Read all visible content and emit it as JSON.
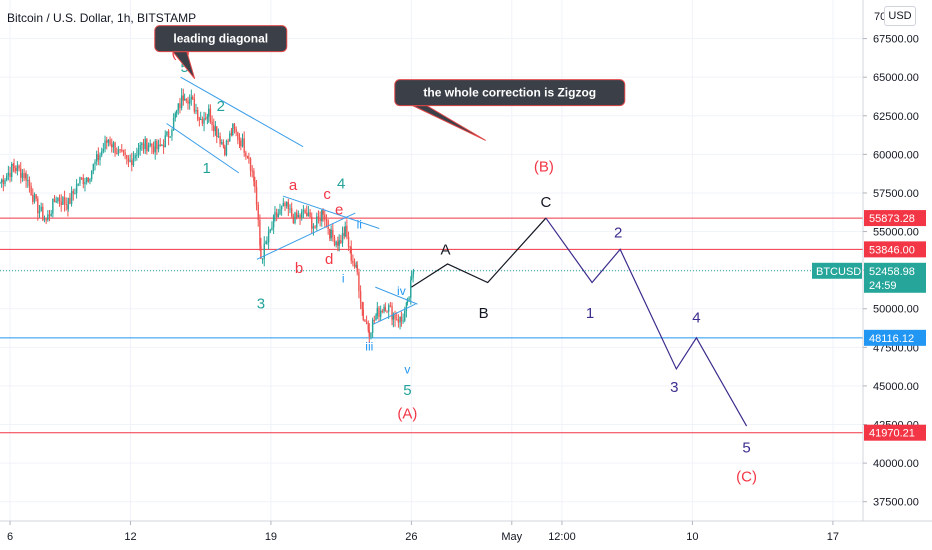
{
  "header": {
    "title": "Bitcoin / U.S. Dollar, 1h, BITSTAMP",
    "currency_button": "USD"
  },
  "chart_data": {
    "type": "candlestick",
    "symbol": "BTCUSD",
    "interval": "1h",
    "exchange": "BITSTAMP",
    "last_price": "52458.98",
    "countdown": "24:59",
    "ylim": [
      36250,
      70000
    ],
    "y_ticks": [
      "67500.00",
      "65000.00",
      "62500.00",
      "60000.00",
      "57500.00",
      "55000.00",
      "52500.00",
      "50000.00",
      "47500.00",
      "45000.00",
      "42500.00",
      "40000.00",
      "37500.00"
    ],
    "y_tick_values": [
      67500,
      65000,
      62500,
      60000,
      57500,
      55000,
      52500,
      50000,
      47500,
      45000,
      42500,
      40000,
      37500
    ],
    "y_top_partial": "70",
    "x_ticks": [
      "6",
      "12",
      "19",
      "26",
      "May",
      "12:00",
      "10",
      "17"
    ],
    "x_tick_days": [
      6,
      12,
      19,
      26,
      31,
      33.5,
      40,
      47
    ],
    "xlim": [
      5.5,
      48.5
    ],
    "horizontal_levels": [
      {
        "value": 55873.28,
        "label": "55873.28",
        "color": "#f23645"
      },
      {
        "value": 53846.0,
        "label": "53846.00",
        "color": "#f23645"
      },
      {
        "value": 48116.12,
        "label": "48116.12",
        "color": "#2196f3"
      },
      {
        "value": 41970.21,
        "label": "41970.21",
        "color": "#f23645"
      }
    ],
    "ohlc_anchors": [
      [
        5.5,
        58200
      ],
      [
        6.2,
        59200
      ],
      [
        6.8,
        58600
      ],
      [
        7.3,
        56700
      ],
      [
        7.8,
        55700
      ],
      [
        8.3,
        57200
      ],
      [
        8.9,
        56800
      ],
      [
        9.4,
        58200
      ],
      [
        9.9,
        58600
      ],
      [
        10.4,
        59800
      ],
      [
        10.9,
        61000
      ],
      [
        11.4,
        60100
      ],
      [
        11.9,
        59400
      ],
      [
        12.4,
        60400
      ],
      [
        12.9,
        60700
      ],
      [
        13.4,
        60300
      ],
      [
        13.9,
        61300
      ],
      [
        14.3,
        62700
      ],
      [
        14.7,
        64000
      ],
      [
        15.1,
        63300
      ],
      [
        15.5,
        62300
      ],
      [
        15.9,
        62700
      ],
      [
        16.3,
        61500
      ],
      [
        16.7,
        60400
      ],
      [
        17.1,
        61600
      ],
      [
        17.5,
        60900
      ],
      [
        17.9,
        59900
      ],
      [
        18.2,
        58000
      ],
      [
        18.5,
        53300
      ],
      [
        18.8,
        54300
      ],
      [
        19.2,
        55900
      ],
      [
        19.7,
        56600
      ],
      [
        20.2,
        55800
      ],
      [
        20.7,
        56200
      ],
      [
        21.2,
        55300
      ],
      [
        21.6,
        56400
      ],
      [
        22.0,
        54700
      ],
      [
        22.4,
        54300
      ],
      [
        22.7,
        55000
      ],
      [
        23.0,
        53400
      ],
      [
        23.3,
        52300
      ],
      [
        23.6,
        49500
      ],
      [
        23.9,
        48600
      ],
      [
        24.3,
        49700
      ],
      [
        24.7,
        50300
      ],
      [
        25.1,
        49600
      ],
      [
        25.5,
        49200
      ],
      [
        25.8,
        50200
      ],
      [
        26.0,
        51700
      ],
      [
        26.1,
        52459
      ]
    ],
    "projection_path": {
      "color": "#131722",
      "points": [
        [
          26.0,
          51400
        ],
        [
          27.8,
          52900
        ],
        [
          29.8,
          51700
        ],
        [
          32.7,
          55873.28
        ]
      ]
    },
    "projection_path_2": {
      "color": "#3d2c8d",
      "points": [
        [
          32.7,
          55873.28
        ],
        [
          35.0,
          51700
        ],
        [
          36.4,
          53846
        ],
        [
          39.2,
          46100
        ],
        [
          40.2,
          48116.12
        ],
        [
          42.7,
          42400
        ]
      ]
    },
    "wave_labels": [
      {
        "text": "(3)",
        "day": 14.5,
        "price": 66300,
        "color": "#f23645",
        "size": "large"
      },
      {
        "text": "5",
        "day": 14.7,
        "price": 65350,
        "color": "#22a39a",
        "size": "large"
      },
      {
        "text": "2",
        "day": 16.5,
        "price": 62800,
        "color": "#22a39a",
        "size": "large"
      },
      {
        "text": "1",
        "day": 15.8,
        "price": 58800,
        "color": "#22a39a",
        "size": "large"
      },
      {
        "text": "a",
        "day": 20.1,
        "price": 57700,
        "color": "#f23645",
        "size": "large"
      },
      {
        "text": "c",
        "day": 21.8,
        "price": 57100,
        "color": "#f23645",
        "size": "large"
      },
      {
        "text": "4",
        "day": 22.5,
        "price": 57800,
        "color": "#22a39a",
        "size": "large"
      },
      {
        "text": "e",
        "day": 22.4,
        "price": 56100,
        "color": "#f23645",
        "size": "large"
      },
      {
        "text": "ii",
        "day": 23.4,
        "price": 55200,
        "color": "#2196f3",
        "size": "small"
      },
      {
        "text": "d",
        "day": 21.9,
        "price": 52900,
        "color": "#f23645",
        "size": "large"
      },
      {
        "text": "b",
        "day": 20.4,
        "price": 52300,
        "color": "#f23645",
        "size": "large"
      },
      {
        "text": "i",
        "day": 22.6,
        "price": 51700,
        "color": "#2196f3",
        "size": "small"
      },
      {
        "text": "3",
        "day": 18.5,
        "price": 50000,
        "color": "#22a39a",
        "size": "large"
      },
      {
        "text": "iv",
        "day": 25.5,
        "price": 50900,
        "color": "#2196f3",
        "size": "small"
      },
      {
        "text": "iii",
        "day": 23.9,
        "price": 47300,
        "color": "#2196f3",
        "size": "small"
      },
      {
        "text": "v",
        "day": 25.8,
        "price": 45800,
        "color": "#2196f3",
        "size": "small"
      },
      {
        "text": "5",
        "day": 25.8,
        "price": 44400,
        "color": "#22a39a",
        "size": "large"
      },
      {
        "text": "(A)",
        "day": 25.8,
        "price": 42900,
        "color": "#f23645",
        "size": "large"
      },
      {
        "text": "A",
        "day": 27.7,
        "price": 53500,
        "color": "#131722",
        "size": "large"
      },
      {
        "text": "B",
        "day": 29.6,
        "price": 49400,
        "color": "#131722",
        "size": "large"
      },
      {
        "text": "(B)",
        "day": 32.6,
        "price": 58900,
        "color": "#f23645",
        "size": "large"
      },
      {
        "text": "C",
        "day": 32.7,
        "price": 56600,
        "color": "#131722",
        "size": "large"
      },
      {
        "text": "1",
        "day": 34.9,
        "price": 49400,
        "color": "#3d2c8d",
        "size": "large"
      },
      {
        "text": "2",
        "day": 36.3,
        "price": 54600,
        "color": "#3d2c8d",
        "size": "large"
      },
      {
        "text": "3",
        "day": 39.1,
        "price": 44600,
        "color": "#3d2c8d",
        "size": "large"
      },
      {
        "text": "4",
        "day": 40.2,
        "price": 49100,
        "color": "#3d2c8d",
        "size": "large"
      },
      {
        "text": "5",
        "day": 42.7,
        "price": 40700,
        "color": "#3d2c8d",
        "size": "large"
      },
      {
        "text": "(C)",
        "day": 42.7,
        "price": 38800,
        "color": "#f23645",
        "size": "large"
      }
    ],
    "trendlines": [
      {
        "color": "#3a9ee8",
        "points": [
          [
            14.5,
            65000
          ],
          [
            20.6,
            60500
          ]
        ]
      },
      {
        "color": "#3a9ee8",
        "points": [
          [
            13.8,
            62000
          ],
          [
            17.4,
            58800
          ]
        ]
      },
      {
        "color": "#3a9ee8",
        "points": [
          [
            19.6,
            57300
          ],
          [
            24.4,
            55200
          ]
        ]
      },
      {
        "color": "#3a9ee8",
        "points": [
          [
            18.3,
            53200
          ],
          [
            23.2,
            56200
          ]
        ]
      },
      {
        "color": "#3a9ee8",
        "points": [
          [
            24.2,
            51400
          ],
          [
            26.3,
            50300
          ]
        ]
      },
      {
        "color": "#3a9ee8",
        "points": [
          [
            24.1,
            49000
          ],
          [
            26.2,
            50300
          ]
        ]
      }
    ],
    "annotations": [
      {
        "text": "leading diagonal",
        "day": 16.5,
        "price": 67500
      },
      {
        "text": "the whole correction is Zigzog",
        "day": 30.9,
        "price": 64000
      }
    ]
  }
}
